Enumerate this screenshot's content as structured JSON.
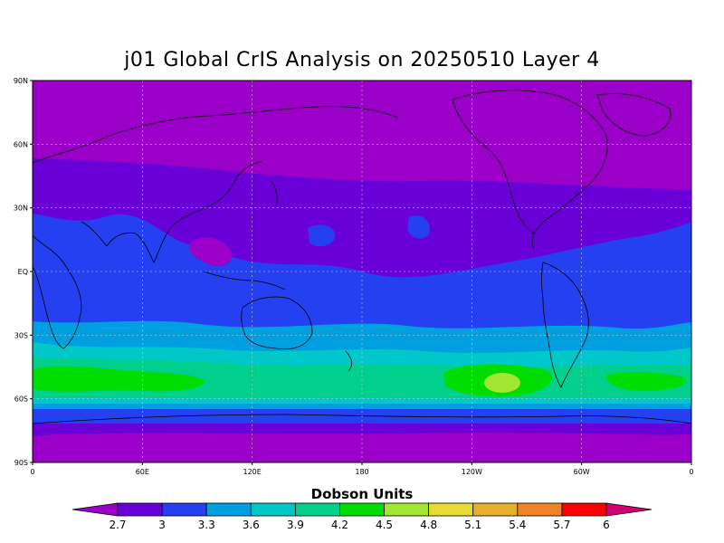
{
  "title": "j01 Global CrIS Analysis on 20250510 Layer 4",
  "colorbar": {
    "title": "Dobson Units",
    "levels": [
      "2.7",
      "3",
      "3.3",
      "3.6",
      "3.9",
      "4.2",
      "4.5",
      "4.8",
      "5.1",
      "5.4",
      "5.7",
      "6"
    ],
    "colors": [
      "#9a00c8",
      "#6a00d8",
      "#2440f0",
      "#00a0e0",
      "#00c8c8",
      "#00d08c",
      "#00dc00",
      "#a0e632",
      "#e6dc32",
      "#e6af2d",
      "#f08228",
      "#fa0000",
      "#d2006e"
    ]
  },
  "axes": {
    "lat_labels": [
      "90N",
      "60N",
      "30N",
      "EQ",
      "30S",
      "60S",
      "90S"
    ],
    "lon_labels": [
      "0",
      "60E",
      "120E",
      "180",
      "120W",
      "60W",
      "0"
    ]
  },
  "map": {
    "field": "ozone (Dobson Units)",
    "grid": true,
    "coastlines": true
  }
}
